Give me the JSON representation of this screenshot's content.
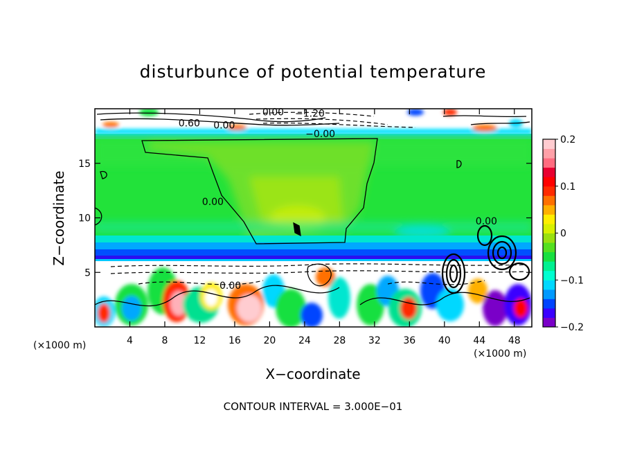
{
  "chart_data": {
    "type": "heatmap",
    "title": "disturbunce of potential temperature",
    "xlabel": "X−coordinate",
    "ylabel": "Z−coordinate",
    "x_unit": "(×1000 m)",
    "y_unit": "(×1000 m)",
    "footer": "CONTOUR INTERVAL = 3.000E−01",
    "xlim": [
      0,
      50
    ],
    "ylim": [
      0,
      20
    ],
    "x_ticks": [
      4,
      8,
      12,
      16,
      20,
      24,
      28,
      32,
      36,
      40,
      44,
      48
    ],
    "y_ticks": [
      5,
      10,
      15
    ],
    "colorbar": {
      "range": [
        -0.2,
        0.2
      ],
      "ticks": [
        -0.2,
        -0.1,
        0,
        0.1,
        0.2
      ],
      "tick_labels": [
        "−0.2",
        "−0.1",
        "0",
        "0.1",
        "0.2"
      ],
      "colors": [
        "#7a00c8",
        "#3a00ff",
        "#0044ff",
        "#0099ff",
        "#00d8ff",
        "#00ffd0",
        "#00f090",
        "#18e040",
        "#55e020",
        "#9ae010",
        "#d8f000",
        "#ffee00",
        "#ffb000",
        "#ff7000",
        "#ff2a00",
        "#ff0000",
        "#e80030",
        "#ff6c80",
        "#ffa0a8",
        "#ffccd0"
      ]
    },
    "contour_interval": 0.3,
    "contour_labels": [
      {
        "text": "0.00",
        "x": 20.4,
        "y": 19.7
      },
      {
        "text": "−1.20",
        "x": 24.6,
        "y": 19.6
      },
      {
        "text": "0.60",
        "x": 10.8,
        "y": 18.7
      },
      {
        "text": "0.00",
        "x": 14.8,
        "y": 18.5
      },
      {
        "text": "−0.00",
        "x": 25.8,
        "y": 17.7
      },
      {
        "text": "0.00",
        "x": 13.5,
        "y": 11.5
      },
      {
        "text": "0.00",
        "x": 15.5,
        "y": 3.8
      },
      {
        "text": "0.00",
        "x": 44.8,
        "y": 9.7
      }
    ]
  }
}
